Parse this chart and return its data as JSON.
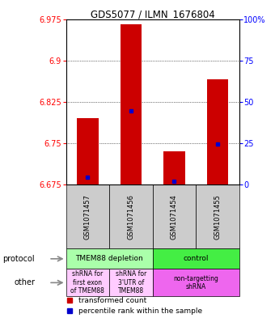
{
  "title": "GDS5077 / ILMN_1676804",
  "samples": [
    "GSM1071457",
    "GSM1071456",
    "GSM1071454",
    "GSM1071455"
  ],
  "bar_bottom": 6.675,
  "bar_tops": [
    6.795,
    6.965,
    6.735,
    6.865
  ],
  "percentile_values": [
    6.688,
    6.808,
    6.68,
    6.748
  ],
  "ylim": [
    6.675,
    6.975
  ],
  "yticks_left": [
    6.675,
    6.75,
    6.825,
    6.9,
    6.975
  ],
  "yticks_right": [
    0,
    25,
    50,
    75,
    100
  ],
  "ytick_right_labels": [
    "0",
    "25",
    "50",
    "75",
    "100%"
  ],
  "bar_color": "#cc0000",
  "percentile_color": "#0000cc",
  "protocol_row": {
    "groups": [
      {
        "label": "TMEM88 depletion",
        "span": [
          0,
          2
        ],
        "color": "#aaffaa"
      },
      {
        "label": "control",
        "span": [
          2,
          4
        ],
        "color": "#44ee44"
      }
    ]
  },
  "other_row": {
    "groups": [
      {
        "label": "shRNA for\nfirst exon\nof TMEM88",
        "span": [
          0,
          1
        ],
        "color": "#ffccff"
      },
      {
        "label": "shRNA for\n3'UTR of\nTMEM88",
        "span": [
          1,
          2
        ],
        "color": "#ffccff"
      },
      {
        "label": "non-targetting\nshRNA",
        "span": [
          2,
          4
        ],
        "color": "#ee66ee"
      }
    ]
  },
  "protocol_label": "protocol",
  "other_label": "other",
  "legend_red_label": "transformed count",
  "legend_blue_label": "percentile rank within the sample"
}
